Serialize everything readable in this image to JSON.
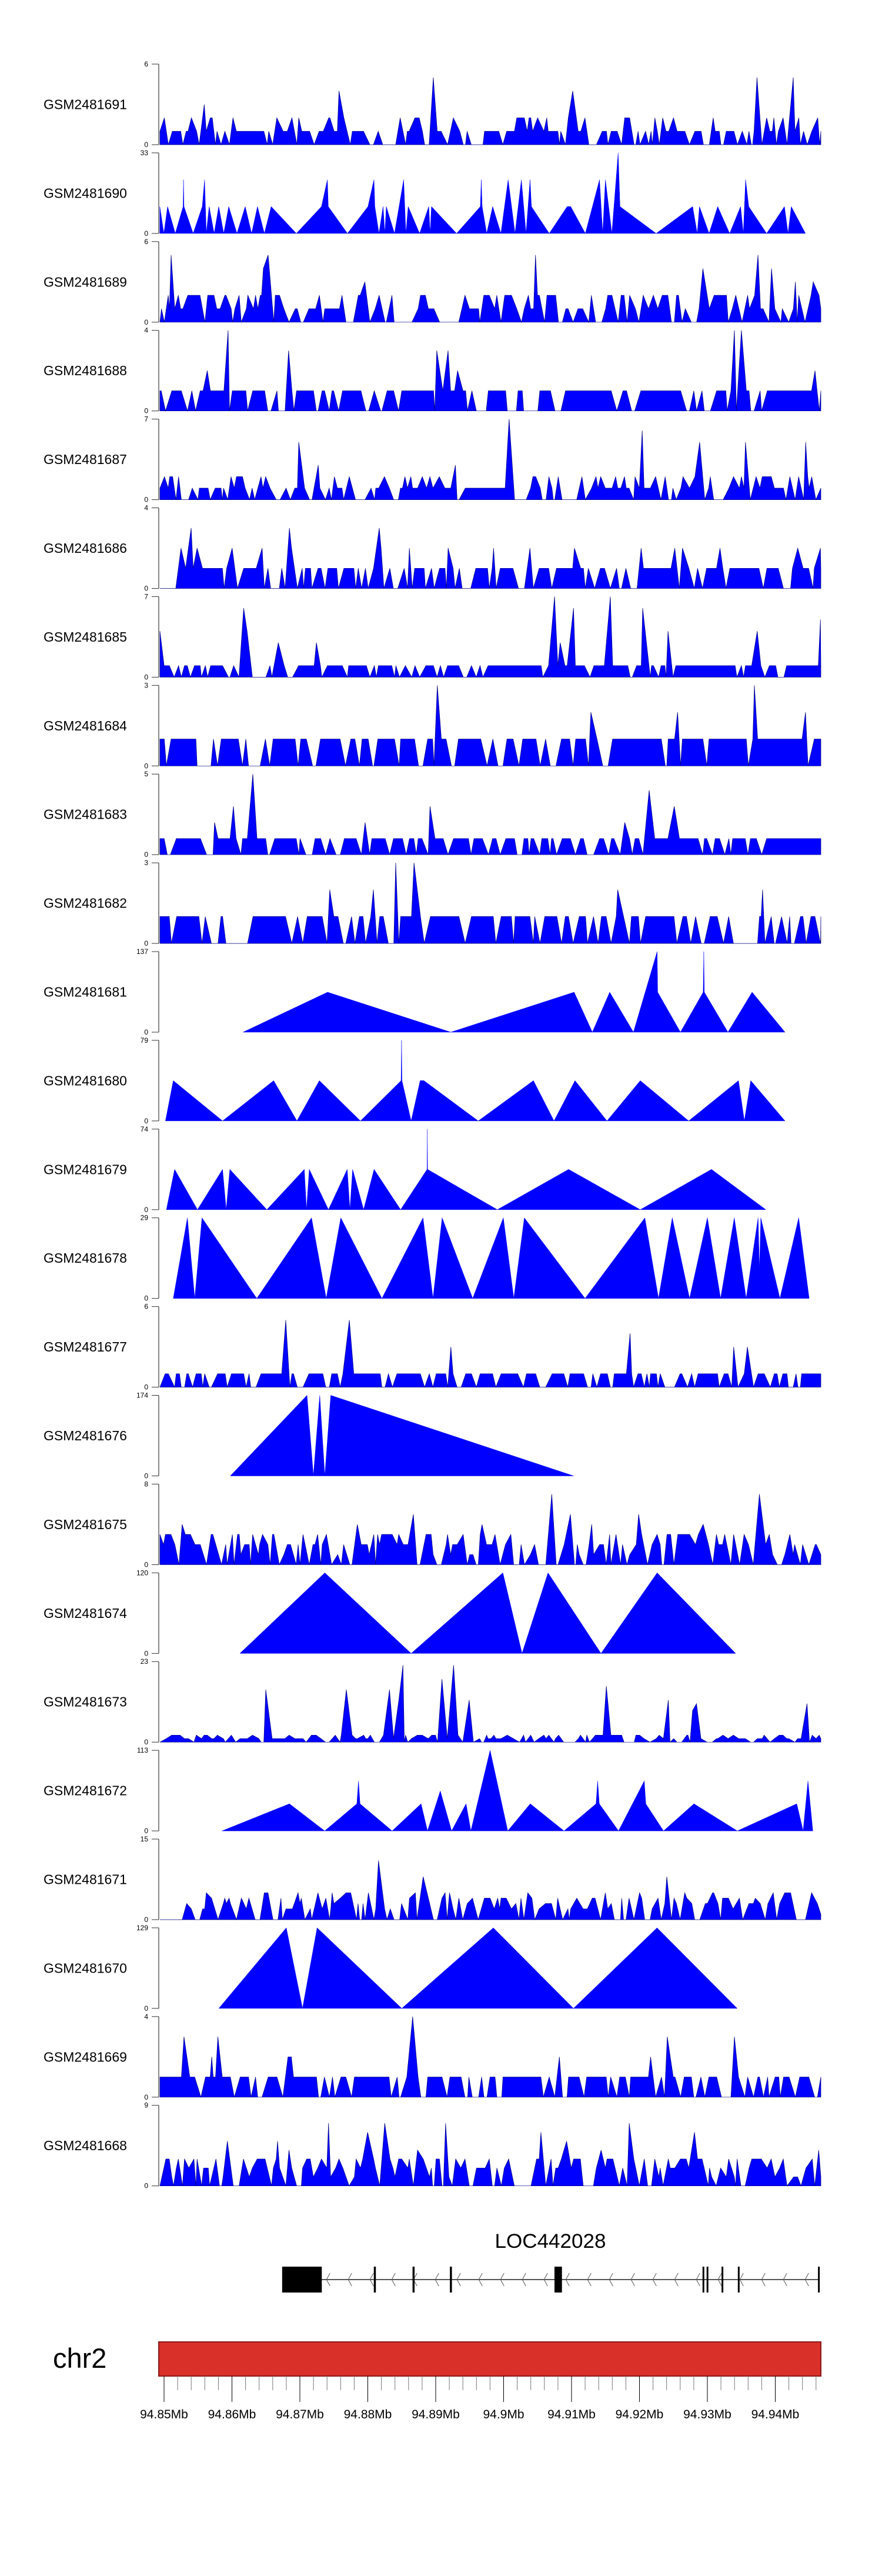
{
  "colors": {
    "signal_fill": "#0000FF",
    "signal_outline": "#000080",
    "axis": "#888888",
    "ideogram_fill": "#D93029",
    "ideogram_border": "#8B1A1A",
    "gene": "#000000",
    "intron": "#555555"
  },
  "chart_data": {
    "type": "area",
    "title": "",
    "xlabel": "",
    "x_units": "kb offset from 94.85Mb on chr2",
    "xlim_kb": [
      0,
      97.9
    ],
    "tracks": [
      {
        "name": "GSM2481691",
        "ymax": 6,
        "kind": "dense",
        "typical": 1.3,
        "seed": 11
      },
      {
        "name": "GSM2481690",
        "ymax": 33,
        "kind": "peaks",
        "points": [
          [
            0.59,
            11
          ],
          [
            1.19,
            0
          ],
          [
            1.73,
            11
          ],
          [
            2.87,
            0
          ],
          [
            4.02,
            11
          ],
          [
            4.08,
            22
          ],
          [
            4.15,
            11
          ],
          [
            5.5,
            0
          ],
          [
            6.84,
            11
          ],
          [
            7.18,
            22
          ],
          [
            7.44,
            0
          ],
          [
            7.85,
            11
          ],
          [
            8.59,
            0
          ],
          [
            9.26,
            11
          ],
          [
            10.0,
            0
          ],
          [
            10.74,
            11
          ],
          [
            11.95,
            0
          ],
          [
            13.16,
            11
          ],
          [
            14.1,
            0
          ],
          [
            14.97,
            11
          ],
          [
            15.98,
            0
          ],
          [
            16.99,
            11
          ],
          [
            20.69,
            0
          ],
          [
            24.39,
            11
          ],
          [
            25.26,
            22
          ],
          [
            25.39,
            11
          ],
          [
            28.22,
            0
          ],
          [
            31.24,
            11
          ],
          [
            32.12,
            22
          ],
          [
            32.25,
            11
          ],
          [
            32.86,
            0
          ],
          [
            33.46,
            11
          ],
          [
            33.73,
            0
          ],
          [
            33.93,
            11
          ],
          [
            35.14,
            0
          ],
          [
            36.49,
            22
          ],
          [
            36.82,
            0
          ],
          [
            37.16,
            11
          ],
          [
            38.84,
            0
          ],
          [
            40.19,
            11
          ],
          [
            40.39,
            0
          ],
          [
            40.59,
            11
          ],
          [
            44.29,
            0
          ],
          [
            47.78,
            11
          ],
          [
            47.92,
            22
          ],
          [
            48.05,
            11
          ],
          [
            48.72,
            0
          ],
          [
            49.6,
            11
          ],
          [
            50.81,
            0
          ],
          [
            51.88,
            22
          ],
          [
            52.89,
            0
          ],
          [
            53.83,
            22
          ],
          [
            54.51,
            0
          ],
          [
            55.11,
            22
          ],
          [
            55.31,
            11
          ],
          [
            57.93,
            0
          ],
          [
            60.56,
            11
          ],
          [
            61.09,
            11
          ],
          [
            63.25,
            0
          ],
          [
            65.33,
            22
          ],
          [
            65.8,
            0
          ],
          [
            66.2,
            22
          ],
          [
            67.15,
            0
          ],
          [
            68.08,
            33
          ],
          [
            68.35,
            11
          ],
          [
            73.67,
            0
          ],
          [
            79.04,
            11
          ],
          [
            79.72,
            0
          ],
          [
            80.05,
            11
          ],
          [
            81.46,
            0
          ],
          [
            82.74,
            11
          ],
          [
            84.49,
            0
          ],
          [
            86.1,
            11
          ],
          [
            86.51,
            0
          ],
          [
            86.84,
            22
          ],
          [
            87.31,
            11
          ],
          [
            89.94,
            0
          ],
          [
            92.56,
            11
          ],
          [
            93.09,
            0
          ],
          [
            93.57,
            11
          ],
          [
            95.65,
            0
          ]
        ]
      },
      {
        "name": "GSM2481689",
        "ymax": 6,
        "kind": "dense",
        "typical": 1.6,
        "seed": 23
      },
      {
        "name": "GSM2481688",
        "ymax": 4,
        "kind": "dense",
        "typical": 1.0,
        "seed": 37
      },
      {
        "name": "GSM2481687",
        "ymax": 7,
        "kind": "dense",
        "typical": 1.3,
        "seed": 41
      },
      {
        "name": "GSM2481686",
        "ymax": 4,
        "kind": "dense",
        "typical": 1.1,
        "seed": 53
      },
      {
        "name": "GSM2481685",
        "ymax": 7,
        "kind": "dense",
        "typical": 1.0,
        "seed": 67
      },
      {
        "name": "GSM2481684",
        "ymax": 3,
        "kind": "dense",
        "typical": 1.0,
        "seed": 71
      },
      {
        "name": "GSM2481683",
        "ymax": 5,
        "kind": "dense",
        "typical": 1.0,
        "seed": 83
      },
      {
        "name": "GSM2481682",
        "ymax": 3,
        "kind": "dense",
        "typical": 1.0,
        "seed": 97
      },
      {
        "name": "GSM2481681",
        "ymax": 137,
        "kind": "peaks",
        "points": [
          [
            12.85,
            0
          ],
          [
            25.29,
            68
          ],
          [
            43.44,
            0
          ],
          [
            61.59,
            68
          ],
          [
            64.28,
            0
          ],
          [
            66.83,
            68
          ],
          [
            70.33,
            0
          ],
          [
            73.82,
            137
          ],
          [
            73.9,
            68
          ],
          [
            77.25,
            0
          ],
          [
            80.6,
            68
          ],
          [
            80.68,
            137
          ],
          [
            80.76,
            68
          ],
          [
            84.24,
            0
          ],
          [
            87.8,
            68
          ],
          [
            92.64,
            0
          ]
        ]
      },
      {
        "name": "GSM2481680",
        "ymax": 79,
        "kind": "peaks",
        "points": [
          [
            1.42,
            0
          ],
          [
            2.57,
            39.5
          ],
          [
            9.83,
            0
          ],
          [
            17.35,
            39.5
          ],
          [
            20.78,
            0
          ],
          [
            24.08,
            39.5
          ],
          [
            30.13,
            0
          ],
          [
            36.11,
            39.5
          ],
          [
            36.18,
            79
          ],
          [
            36.24,
            39.5
          ],
          [
            37.59,
            0
          ],
          [
            38.93,
            39.5
          ],
          [
            39.47,
            39.5
          ],
          [
            47.47,
            0
          ],
          [
            55.6,
            39.5
          ],
          [
            58.63,
            0
          ],
          [
            61.72,
            39.5
          ],
          [
            66.43,
            0
          ],
          [
            71.33,
            39.5
          ],
          [
            78.46,
            0
          ],
          [
            85.79,
            39.5
          ],
          [
            86.66,
            0
          ],
          [
            87.6,
            39.5
          ],
          [
            92.64,
            0
          ]
        ]
      },
      {
        "name": "GSM2481679",
        "ymax": 74,
        "kind": "peaks",
        "points": [
          [
            1.56,
            0
          ],
          [
            2.77,
            37
          ],
          [
            6.13,
            0
          ],
          [
            9.83,
            37
          ],
          [
            10.36,
            0
          ],
          [
            10.9,
            37
          ],
          [
            16.35,
            0
          ],
          [
            21.86,
            37
          ],
          [
            22.19,
            0
          ],
          [
            22.6,
            37
          ],
          [
            25.42,
            0
          ],
          [
            28.18,
            37
          ],
          [
            28.58,
            0
          ],
          [
            28.98,
            37
          ],
          [
            30.6,
            0
          ],
          [
            32.14,
            37
          ],
          [
            36.04,
            0
          ],
          [
            39.94,
            37
          ],
          [
            39.97,
            74
          ],
          [
            40.01,
            37
          ],
          [
            50.29,
            0
          ],
          [
            60.78,
            37
          ],
          [
            71.33,
            0
          ],
          [
            81.82,
            37
          ],
          [
            89.82,
            0
          ]
        ]
      },
      {
        "name": "GSM2481678",
        "ymax": 29,
        "kind": "peaks",
        "points": [
          [
            2.57,
            0
          ],
          [
            4.65,
            29
          ],
          [
            5.73,
            0
          ],
          [
            6.8,
            29
          ],
          [
            14.87,
            0
          ],
          [
            22.93,
            29
          ],
          [
            25.09,
            0
          ],
          [
            27.24,
            29
          ],
          [
            33.29,
            0
          ],
          [
            39.34,
            29
          ],
          [
            40.81,
            0
          ],
          [
            42.16,
            29
          ],
          [
            46.66,
            0
          ],
          [
            51.17,
            29
          ],
          [
            52.71,
            0
          ],
          [
            54.26,
            29
          ],
          [
            63.2,
            0
          ],
          [
            72.01,
            29
          ],
          [
            74.02,
            0
          ],
          [
            76.04,
            29
          ],
          [
            78.59,
            0
          ],
          [
            81.21,
            29
          ],
          [
            83.16,
            0
          ],
          [
            85.18,
            29
          ],
          [
            86.93,
            0
          ],
          [
            88.68,
            29
          ],
          [
            88.88,
            10
          ],
          [
            89.08,
            29
          ],
          [
            91.9,
            0
          ],
          [
            94.66,
            29
          ],
          [
            96.2,
            0
          ]
        ]
      },
      {
        "name": "GSM2481677",
        "ymax": 6,
        "kind": "dense",
        "typical": 1.0,
        "seed": 101
      },
      {
        "name": "GSM2481676",
        "ymax": 174,
        "kind": "peaks",
        "points": [
          [
            10.97,
            0
          ],
          [
            22.26,
            174
          ],
          [
            23.2,
            0
          ],
          [
            24.14,
            174
          ],
          [
            24.88,
            0
          ],
          [
            25.76,
            174
          ],
          [
            61.52,
            0
          ]
        ]
      },
      {
        "name": "GSM2481675",
        "ymax": 8,
        "kind": "dense",
        "typical": 2.2,
        "seed": 113
      },
      {
        "name": "GSM2481674",
        "ymax": 120,
        "kind": "peaks",
        "points": [
          [
            12.38,
            0
          ],
          [
            24.88,
            120
          ],
          [
            37.59,
            0
          ],
          [
            51.1,
            120
          ],
          [
            53.92,
            0
          ],
          [
            57.75,
            120
          ],
          [
            65.55,
            0
          ],
          [
            73.82,
            120
          ],
          [
            85.38,
            0
          ]
        ]
      },
      {
        "name": "GSM2481673",
        "ymax": 23,
        "kind": "dense",
        "typical": 1.4,
        "seed": 127
      },
      {
        "name": "GSM2481672",
        "ymax": 113,
        "kind": "peaks",
        "points": [
          [
            9.74,
            0
          ],
          [
            19.67,
            38
          ],
          [
            24.87,
            0
          ],
          [
            29.6,
            38
          ],
          [
            29.84,
            70
          ],
          [
            30.07,
            38
          ],
          [
            34.8,
            0
          ],
          [
            39.06,
            38
          ],
          [
            40.0,
            0
          ],
          [
            41.89,
            56
          ],
          [
            43.55,
            0
          ],
          [
            45.68,
            38
          ],
          [
            46.39,
            0
          ],
          [
            49.22,
            113
          ],
          [
            51.82,
            0
          ],
          [
            55.13,
            38
          ],
          [
            60.1,
            0
          ],
          [
            64.82,
            38
          ],
          [
            65.06,
            70
          ],
          [
            65.3,
            38
          ],
          [
            68.13,
            0
          ],
          [
            71.92,
            70
          ],
          [
            72.15,
            38
          ],
          [
            74.75,
            0
          ],
          [
            79.24,
            38
          ],
          [
            85.63,
            0
          ],
          [
            94.37,
            38
          ],
          [
            95.32,
            0
          ],
          [
            96.03,
            70
          ],
          [
            96.74,
            0
          ]
        ]
      },
      {
        "name": "GSM2481671",
        "ymax": 15,
        "kind": "dense",
        "typical": 3.5,
        "seed": 131
      },
      {
        "name": "GSM2481670",
        "ymax": 129,
        "kind": "peaks",
        "points": [
          [
            9.27,
            0
          ],
          [
            19.21,
            129
          ],
          [
            21.6,
            0
          ],
          [
            23.75,
            129
          ],
          [
            36.22,
            0
          ],
          [
            49.7,
            129
          ],
          [
            61.5,
            0
          ],
          [
            73.8,
            129
          ],
          [
            85.6,
            0
          ]
        ]
      },
      {
        "name": "GSM2481669",
        "ymax": 4,
        "kind": "dense",
        "typical": 1.0,
        "seed": 149
      },
      {
        "name": "GSM2481668",
        "ymax": 9,
        "kind": "dense",
        "typical": 2.4,
        "seed": 157
      }
    ],
    "gene": {
      "name": "LOC442028",
      "strand": "-",
      "exons_kb": [
        [
          18.6,
          24.44
        ],
        [
          32.1,
          32.4
        ],
        [
          37.8,
          38.1
        ],
        [
          43.3,
          43.6
        ],
        [
          58.7,
          59.8
        ],
        [
          80.5,
          80.7
        ],
        [
          81.1,
          81.3
        ],
        [
          83.3,
          83.5
        ],
        [
          85.7,
          85.9
        ],
        [
          97.5,
          97.7
        ]
      ]
    },
    "ideogram": {
      "chromosome": "chr2",
      "ticks_mb": [
        "94.85Mb",
        "94.86Mb",
        "94.87Mb",
        "94.88Mb",
        "94.89Mb",
        "94.9Mb",
        "94.91Mb",
        "94.92Mb",
        "94.93Mb",
        "94.94Mb"
      ],
      "minor_tick_step_kb": 2
    }
  }
}
